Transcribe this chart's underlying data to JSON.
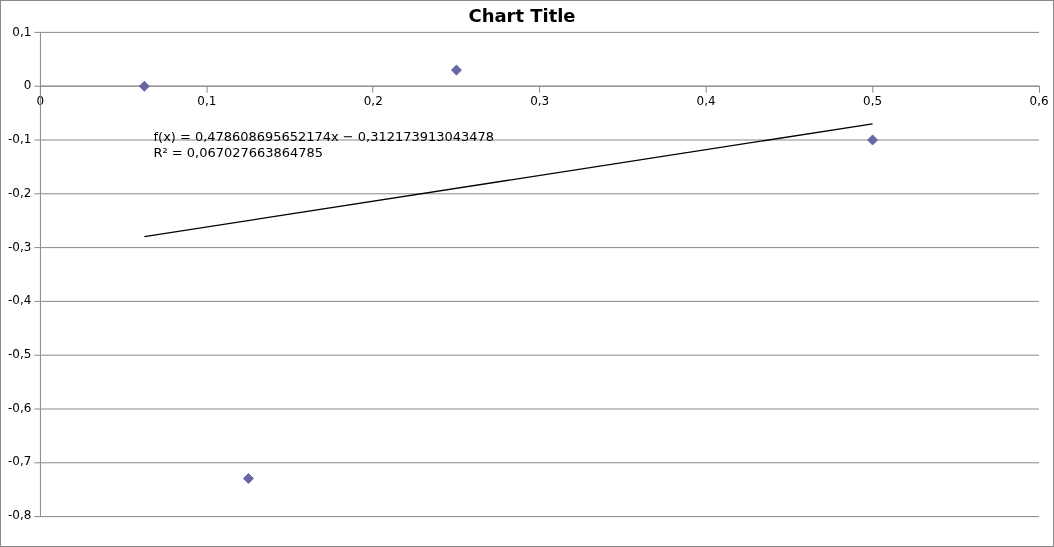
{
  "chart_data": {
    "type": "scatter",
    "title": "Chart Title",
    "series": [
      {
        "marker": "diamond",
        "color": "#6666a6",
        "x": [
          0.0625,
          0.125,
          0.25,
          0.5
        ],
        "values": [
          0,
          -0.73,
          0.03,
          -0.1
        ]
      },
      {
        "type": "line",
        "color": "#000000",
        "x": [
          0.0625,
          0.5
        ],
        "values": [
          -0.28,
          -0.07
        ]
      }
    ],
    "annotations": [
      "f(x) = 0,478608695652174x − 0,312173913043478",
      "R² = 0,067027663864785"
    ],
    "xlim": [
      0,
      0.6
    ],
    "xticks": [
      {
        "value": 0,
        "label": "0"
      },
      {
        "value": 0.1,
        "label": "0,1"
      },
      {
        "value": 0.2,
        "label": "0,2"
      },
      {
        "value": 0.3,
        "label": "0,3"
      },
      {
        "value": 0.4,
        "label": "0,4"
      },
      {
        "value": 0.5,
        "label": "0,5"
      },
      {
        "value": 0.6,
        "label": "0,6"
      }
    ],
    "ylim": [
      -0.8,
      0.1
    ],
    "yticks": [
      {
        "value": 0.1,
        "label": "0,1"
      },
      {
        "value": 0,
        "label": "0"
      },
      {
        "value": -0.1,
        "label": "-0,1"
      },
      {
        "value": -0.2,
        "label": "-0,2"
      },
      {
        "value": -0.3,
        "label": "-0,3"
      },
      {
        "value": -0.4,
        "label": "-0,4"
      },
      {
        "value": -0.5,
        "label": "-0,5"
      },
      {
        "value": -0.6,
        "label": "-0,6"
      },
      {
        "value": -0.7,
        "label": "-0,7"
      },
      {
        "value": -0.8,
        "label": "-0,8"
      }
    ],
    "grid": "y",
    "legend": false,
    "line_style": "solid"
  }
}
